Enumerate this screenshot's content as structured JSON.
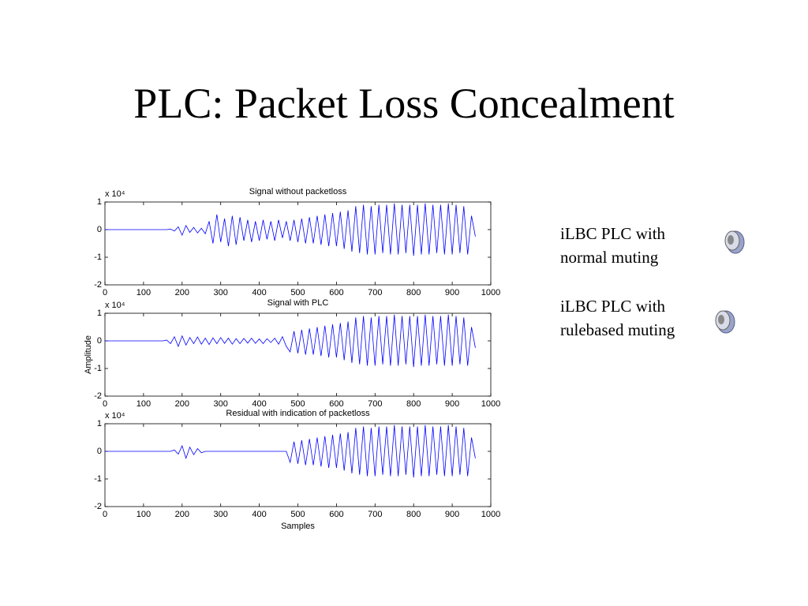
{
  "title": "PLC: Packet Loss Concealment",
  "audio_items": [
    {
      "lines": [
        "iLBC PLC with",
        "normal muting"
      ]
    },
    {
      "lines": [
        "iLBC PLC with",
        "rulebased muting"
      ]
    }
  ],
  "chart_data": [
    {
      "type": "line",
      "title": "Signal without packetloss",
      "y_multiplier": "x 10⁴",
      "color": "#0000ff",
      "xlim": [
        0,
        1000
      ],
      "ylim": [
        -2,
        1
      ],
      "xticks": [
        0,
        100,
        200,
        300,
        400,
        500,
        600,
        700,
        800,
        900,
        1000
      ],
      "yticks": [
        -2,
        -1,
        0,
        1
      ],
      "x": [
        0,
        10,
        20,
        30,
        40,
        50,
        60,
        70,
        80,
        90,
        100,
        110,
        120,
        130,
        140,
        150,
        160,
        170,
        180,
        190,
        200,
        210,
        220,
        230,
        240,
        250,
        260,
        270,
        280,
        290,
        300,
        310,
        320,
        330,
        340,
        350,
        360,
        370,
        380,
        390,
        400,
        410,
        420,
        430,
        440,
        450,
        460,
        470,
        480,
        490,
        500,
        510,
        520,
        530,
        540,
        550,
        560,
        570,
        580,
        590,
        600,
        610,
        620,
        630,
        640,
        650,
        660,
        670,
        680,
        690,
        700,
        710,
        720,
        730,
        740,
        750,
        760,
        770,
        780,
        790,
        800,
        810,
        820,
        830,
        840,
        850,
        860,
        870,
        880,
        890,
        900,
        910,
        920,
        930,
        940,
        950,
        960
      ],
      "values": [
        0,
        0,
        0,
        0,
        0,
        0,
        0,
        0,
        0,
        0,
        0,
        0,
        0,
        0,
        0,
        0,
        0,
        0.02,
        -0.05,
        0.1,
        -0.2,
        0.15,
        -0.1,
        0.08,
        -0.12,
        0.05,
        -0.15,
        0.3,
        -0.5,
        0.55,
        -0.45,
        0.4,
        -0.6,
        0.5,
        -0.55,
        0.45,
        -0.4,
        0.35,
        -0.45,
        0.3,
        -0.4,
        0.35,
        -0.35,
        0.3,
        -0.4,
        0.35,
        -0.3,
        0.3,
        -0.4,
        0.35,
        -0.45,
        0.4,
        -0.5,
        0.45,
        -0.5,
        0.5,
        -0.55,
        0.55,
        -0.6,
        0.6,
        -0.6,
        0.65,
        -0.7,
        0.7,
        -0.8,
        0.85,
        -0.85,
        0.9,
        -0.9,
        0.85,
        -0.9,
        0.9,
        -0.85,
        0.9,
        -0.9,
        0.95,
        -0.9,
        0.9,
        -0.85,
        0.9,
        -0.95,
        0.9,
        -0.9,
        0.95,
        -0.9,
        0.9,
        -0.85,
        0.9,
        -0.9,
        0.95,
        -0.9,
        0.9,
        -0.85,
        0.85,
        -0.9,
        0.5,
        -0.25
      ]
    },
    {
      "type": "line",
      "title": "Signal with PLC",
      "y_multiplier": "x 10⁴",
      "ylabel": "Amplitude",
      "color": "#0000ff",
      "xlim": [
        0,
        1000
      ],
      "ylim": [
        -2,
        1
      ],
      "xticks": [
        0,
        100,
        200,
        300,
        400,
        500,
        600,
        700,
        800,
        900,
        1000
      ],
      "yticks": [
        -2,
        -1,
        0,
        1
      ],
      "x": [
        0,
        10,
        20,
        30,
        40,
        50,
        60,
        70,
        80,
        90,
        100,
        110,
        120,
        130,
        140,
        150,
        160,
        170,
        180,
        190,
        200,
        210,
        220,
        230,
        240,
        250,
        260,
        270,
        280,
        290,
        300,
        310,
        320,
        330,
        340,
        350,
        360,
        370,
        380,
        390,
        400,
        410,
        420,
        430,
        440,
        450,
        460,
        470,
        480,
        490,
        500,
        510,
        520,
        530,
        540,
        550,
        560,
        570,
        580,
        590,
        600,
        610,
        620,
        630,
        640,
        650,
        660,
        670,
        680,
        690,
        700,
        710,
        720,
        730,
        740,
        750,
        760,
        770,
        780,
        790,
        800,
        810,
        820,
        830,
        840,
        850,
        860,
        870,
        880,
        890,
        900,
        910,
        920,
        930,
        940,
        950,
        960
      ],
      "values": [
        0,
        0,
        0,
        0,
        0,
        0,
        0,
        0,
        0,
        0,
        0,
        0,
        0,
        0,
        0,
        0,
        0.03,
        -0.1,
        0.15,
        -0.2,
        0.18,
        -0.15,
        0.12,
        -0.1,
        0.14,
        -0.12,
        0.1,
        -0.13,
        0.11,
        -0.1,
        0.12,
        -0.09,
        0.1,
        -0.12,
        0.08,
        -0.1,
        0.09,
        -0.08,
        0.1,
        -0.09,
        0.07,
        -0.1,
        0.08,
        -0.06,
        0.1,
        -0.12,
        0.15,
        -0.2,
        -0.4,
        0.35,
        -0.45,
        0.4,
        -0.5,
        0.45,
        -0.5,
        0.5,
        -0.55,
        0.55,
        -0.6,
        0.6,
        -0.6,
        0.65,
        -0.7,
        0.7,
        -0.8,
        0.85,
        -0.85,
        0.9,
        -0.9,
        0.85,
        -0.9,
        0.9,
        -0.85,
        0.9,
        -0.9,
        0.95,
        -0.9,
        0.9,
        -0.85,
        0.9,
        -0.95,
        0.9,
        -0.9,
        0.95,
        -0.9,
        0.9,
        -0.85,
        0.9,
        -0.9,
        0.95,
        -0.9,
        0.9,
        -0.85,
        0.85,
        -0.9,
        0.5,
        -0.25
      ]
    },
    {
      "type": "line",
      "title": "Residual with indication of packetloss",
      "y_multiplier": "x 10⁴",
      "xlabel": "Samples",
      "color": "#0000ff",
      "xlim": [
        0,
        1000
      ],
      "ylim": [
        -2,
        1
      ],
      "xticks": [
        0,
        100,
        200,
        300,
        400,
        500,
        600,
        700,
        800,
        900,
        1000
      ],
      "yticks": [
        -2,
        -1,
        0,
        1
      ],
      "x": [
        0,
        10,
        20,
        30,
        40,
        50,
        60,
        70,
        80,
        90,
        100,
        110,
        120,
        130,
        140,
        150,
        160,
        170,
        180,
        190,
        200,
        210,
        220,
        230,
        240,
        250,
        260,
        270,
        280,
        290,
        300,
        310,
        320,
        330,
        340,
        350,
        360,
        370,
        380,
        390,
        400,
        410,
        420,
        430,
        440,
        450,
        460,
        470,
        480,
        490,
        500,
        510,
        520,
        530,
        540,
        550,
        560,
        570,
        580,
        590,
        600,
        610,
        620,
        630,
        640,
        650,
        660,
        670,
        680,
        690,
        700,
        710,
        720,
        730,
        740,
        750,
        760,
        770,
        780,
        790,
        800,
        810,
        820,
        830,
        840,
        850,
        860,
        870,
        880,
        890,
        900,
        910,
        920,
        930,
        940,
        950,
        960
      ],
      "values": [
        0,
        0,
        0,
        0,
        0,
        0,
        0,
        0,
        0,
        0,
        0,
        0,
        0,
        0,
        0,
        0,
        0,
        0,
        0.05,
        -0.1,
        0.2,
        -0.25,
        0.15,
        -0.12,
        0.1,
        -0.05,
        0,
        0,
        0,
        0,
        0,
        0,
        0,
        0,
        0,
        0,
        0,
        0,
        0,
        0,
        0,
        0,
        0,
        0,
        0,
        0,
        0,
        0,
        -0.4,
        0.35,
        -0.45,
        0.4,
        -0.5,
        0.45,
        -0.5,
        0.5,
        -0.55,
        0.55,
        -0.6,
        0.6,
        -0.6,
        0.65,
        -0.7,
        0.7,
        -0.8,
        0.85,
        -0.85,
        0.9,
        -0.9,
        0.85,
        -0.9,
        0.9,
        -0.85,
        0.9,
        -0.9,
        0.95,
        -0.9,
        0.9,
        -0.85,
        0.9,
        -0.95,
        0.9,
        -0.9,
        0.95,
        -0.9,
        0.9,
        -0.85,
        0.9,
        -0.9,
        0.95,
        -0.9,
        0.9,
        -0.85,
        0.85,
        -0.9,
        0.5,
        -0.25
      ]
    }
  ]
}
